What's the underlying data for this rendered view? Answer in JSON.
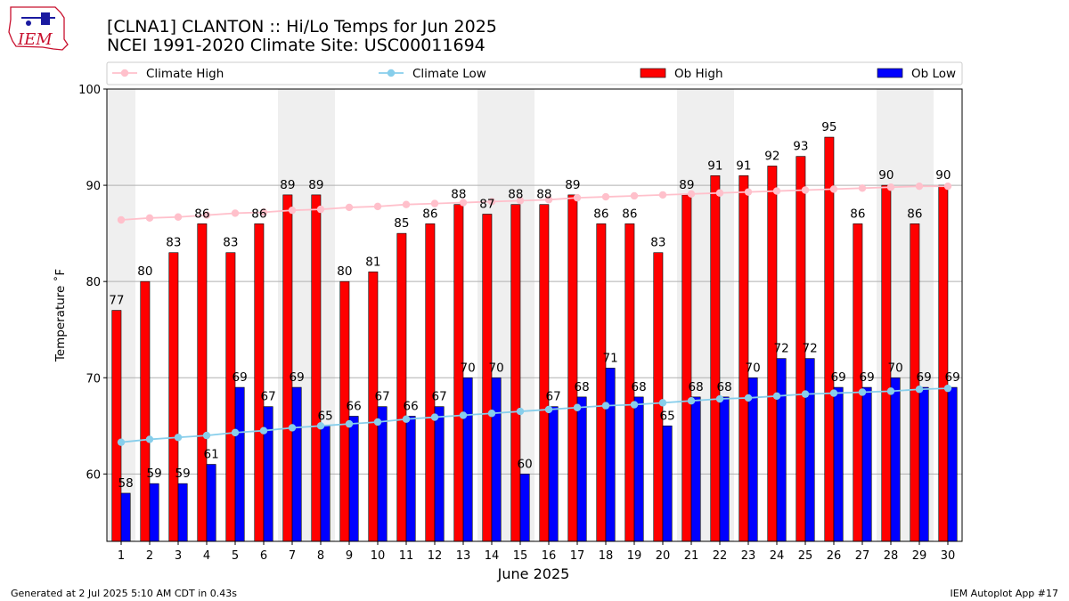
{
  "header": {
    "title_line1": "[CLNA1] CLANTON :: Hi/Lo Temps for Jun 2025",
    "title_line2": "NCEI 1991-2020 Climate Site: USC00011694",
    "logo_text": "IEM"
  },
  "footer": {
    "generated": "Generated at 2 Jul 2025 5:10 AM CDT in 0.43s",
    "app": "IEM Autoplot App #17"
  },
  "colors": {
    "ob_high": "#ff0000",
    "ob_low": "#0000ff",
    "climate_high": "#ffc0cb",
    "climate_low": "#87ceeb",
    "weekend_band": "#efefef",
    "grid": "#b0b0b0"
  },
  "chart_data": {
    "type": "bar",
    "xlabel": "June 2025",
    "ylabel": "Temperature ˚F",
    "ylim": [
      53,
      100
    ],
    "yticks": [
      60,
      70,
      80,
      90,
      100
    ],
    "grid": "horizontal",
    "legend_position": "top",
    "categories": [
      "1",
      "2",
      "3",
      "4",
      "5",
      "6",
      "7",
      "8",
      "9",
      "10",
      "11",
      "12",
      "13",
      "14",
      "15",
      "16",
      "17",
      "18",
      "19",
      "20",
      "21",
      "22",
      "23",
      "24",
      "25",
      "26",
      "27",
      "28",
      "29",
      "30"
    ],
    "weekend_days": [
      1,
      7,
      8,
      14,
      15,
      21,
      22,
      28,
      29
    ],
    "series": [
      {
        "name": "Ob High",
        "kind": "bar",
        "values": [
          77,
          80,
          83,
          86,
          83,
          86,
          89,
          89,
          80,
          81,
          85,
          86,
          88,
          87,
          88,
          88,
          89,
          86,
          86,
          83,
          89,
          91,
          91,
          92,
          93,
          95,
          86,
          90,
          86,
          90
        ]
      },
      {
        "name": "Ob Low",
        "kind": "bar",
        "values": [
          58,
          59,
          59,
          61,
          69,
          67,
          69,
          65,
          66,
          67,
          66,
          67,
          70,
          70,
          60,
          67,
          68,
          71,
          68,
          65,
          68,
          68,
          70,
          72,
          72,
          69,
          69,
          70,
          69,
          69
        ]
      },
      {
        "name": "Climate High",
        "kind": "line",
        "values": [
          86.4,
          86.6,
          86.7,
          86.9,
          87.1,
          87.2,
          87.4,
          87.5,
          87.7,
          87.8,
          88.0,
          88.1,
          88.2,
          88.3,
          88.4,
          88.5,
          88.7,
          88.8,
          88.9,
          89.0,
          89.1,
          89.2,
          89.3,
          89.4,
          89.5,
          89.6,
          89.7,
          89.8,
          89.9,
          89.9
        ]
      },
      {
        "name": "Climate Low",
        "kind": "line",
        "values": [
          63.3,
          63.6,
          63.8,
          64.0,
          64.3,
          64.5,
          64.8,
          65.0,
          65.2,
          65.4,
          65.7,
          65.9,
          66.1,
          66.3,
          66.5,
          66.7,
          66.9,
          67.1,
          67.2,
          67.4,
          67.6,
          67.8,
          67.9,
          68.1,
          68.3,
          68.4,
          68.5,
          68.6,
          68.8,
          68.9
        ]
      }
    ]
  }
}
